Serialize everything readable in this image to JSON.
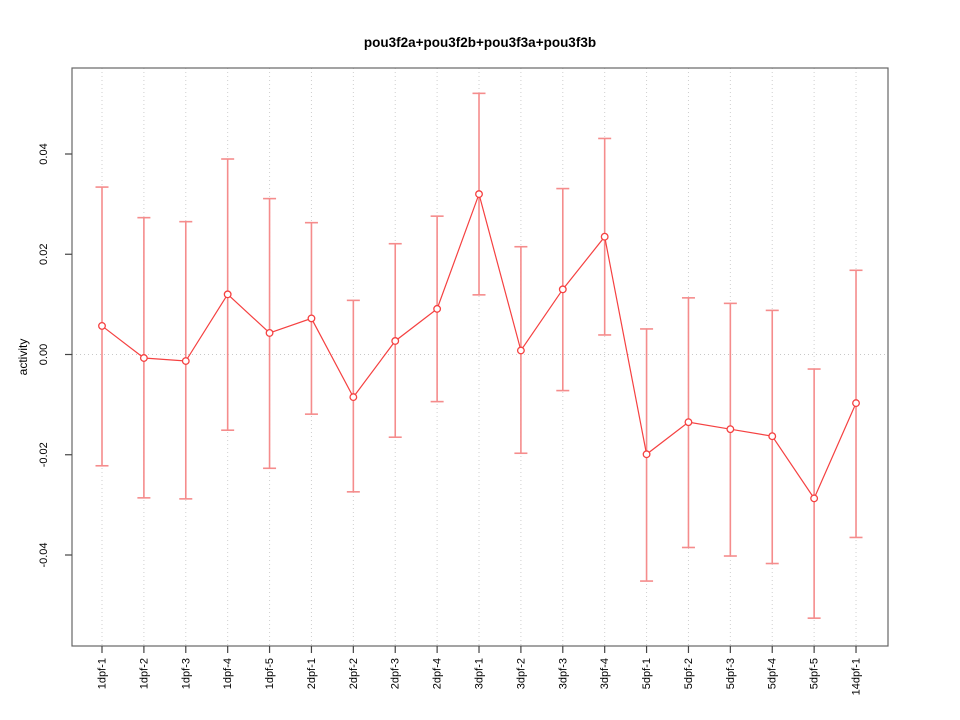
{
  "chart_data": {
    "type": "scatter",
    "title": "pou3f2a+pou3f2b+pou3f3a+pou3f3b",
    "xlabel": "",
    "ylabel": "activity",
    "categories": [
      "1dpf-1",
      "1dpf-2",
      "1dpf-3",
      "1dpf-4",
      "1dpf-5",
      "2dpf-1",
      "2dpf-2",
      "2dpf-3",
      "2dpf-4",
      "3dpf-1",
      "3dpf-2",
      "3dpf-3",
      "3dpf-4",
      "5dpf-1",
      "5dpf-2",
      "5dpf-3",
      "5dpf-4",
      "5dpf-5",
      "14dpf-1"
    ],
    "series": [
      {
        "name": "activity",
        "values": [
          0.0057,
          -0.0007,
          -0.0013,
          0.012,
          0.0043,
          0.0072,
          -0.0085,
          0.0027,
          0.0091,
          0.032,
          0.0008,
          0.013,
          0.0235,
          -0.0199,
          -0.0135,
          -0.0149,
          -0.0163,
          -0.0287,
          -0.0097
        ],
        "ci_low": [
          -0.0222,
          -0.0286,
          -0.0288,
          -0.0151,
          -0.0227,
          -0.0119,
          -0.0274,
          -0.0165,
          -0.0094,
          0.0119,
          -0.0197,
          -0.0072,
          0.0039,
          -0.0452,
          -0.0385,
          -0.0402,
          -0.0417,
          -0.0526,
          -0.0365
        ],
        "ci_high": [
          0.0334,
          0.0273,
          0.0265,
          0.039,
          0.0311,
          0.0263,
          0.0108,
          0.0221,
          0.0276,
          0.0521,
          0.0215,
          0.0331,
          0.0431,
          0.0051,
          0.0113,
          0.0102,
          0.0088,
          -0.0029,
          0.0168
        ]
      }
    ],
    "ylim": [
      -0.0582,
      0.0572
    ],
    "yticks": [
      {
        "value": -0.04,
        "label": "-0.04"
      },
      {
        "value": -0.02,
        "label": "-0.02"
      },
      {
        "value": 0.0,
        "label": "0.00"
      },
      {
        "value": 0.02,
        "label": "0.02"
      },
      {
        "value": 0.04,
        "label": "0.04"
      }
    ],
    "grid": {
      "vertical_dotted_per_category": true,
      "horizontal_dotted_at_zero": true,
      "legend": "none"
    },
    "colors": {
      "line": "#f54141",
      "point": "#f54141",
      "error_bar": "#f58c8c",
      "grid": "#cfcfcf",
      "zero_line": "#c8c8c8",
      "box": "#666666",
      "tick": "#444444",
      "text": "#000000",
      "background": "#ffffff"
    }
  }
}
